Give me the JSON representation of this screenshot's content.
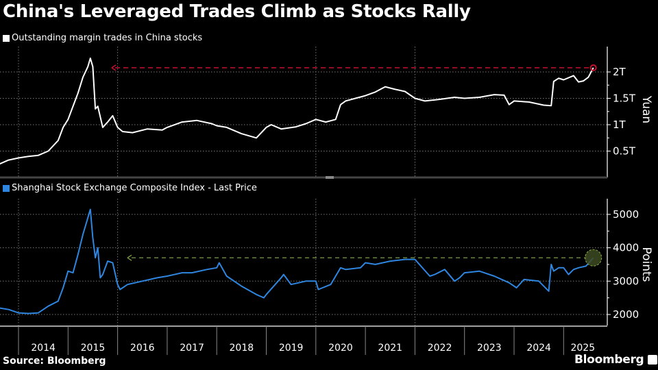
{
  "title": "China's Leveraged Trades Climb as Stocks Rally",
  "source": "Source: Bloomberg",
  "brand": "Bloomberg",
  "colors": {
    "margin": "#ffffff",
    "index": "#2f86e0",
    "margin_annotation": "#c8102e",
    "index_annotation": "#8ab04a",
    "grid": "#777777"
  },
  "chart_data": [
    {
      "type": "line",
      "title": "Outstanding margin trades in China stocks",
      "legend": "Outstanding margin trades in China stocks",
      "ylabel": "Yuan",
      "yticks": [
        0.5,
        1,
        1.5,
        2
      ],
      "ytick_labels": [
        "0.5T",
        "1T",
        "1.5T",
        "2T"
      ],
      "ylim": [
        0,
        2.4
      ],
      "unit": "trillion yuan",
      "annotation": "Latest level ≈ 2.08T, near 2015 high reference line",
      "x": [
        2013.6,
        2013.8,
        2014.0,
        2014.2,
        2014.4,
        2014.6,
        2014.8,
        2014.9,
        2015.0,
        2015.1,
        2015.2,
        2015.3,
        2015.4,
        2015.45,
        2015.5,
        2015.55,
        2015.6,
        2015.7,
        2015.8,
        2015.9,
        2016.0,
        2016.1,
        2016.3,
        2016.6,
        2016.9,
        2017.0,
        2017.3,
        2017.6,
        2017.9,
        2018.0,
        2018.2,
        2018.5,
        2018.8,
        2019.0,
        2019.1,
        2019.3,
        2019.6,
        2019.8,
        2020.0,
        2020.2,
        2020.4,
        2020.5,
        2020.6,
        2020.8,
        2021.0,
        2021.2,
        2021.4,
        2021.6,
        2021.8,
        2022.0,
        2022.2,
        2022.5,
        2022.8,
        2023.0,
        2023.3,
        2023.6,
        2023.8,
        2023.9,
        2024.0,
        2024.3,
        2024.6,
        2024.75,
        2024.8,
        2024.9,
        2025.0,
        2025.2,
        2025.3,
        2025.4,
        2025.5,
        2025.6
      ],
      "values": [
        0.25,
        0.33,
        0.37,
        0.4,
        0.42,
        0.5,
        0.7,
        0.95,
        1.1,
        1.35,
        1.6,
        1.9,
        2.1,
        2.26,
        2.1,
        1.3,
        1.35,
        0.95,
        1.05,
        1.17,
        0.95,
        0.87,
        0.85,
        0.92,
        0.9,
        0.95,
        1.05,
        1.08,
        1.02,
        0.98,
        0.95,
        0.83,
        0.75,
        0.95,
        1.0,
        0.92,
        0.96,
        1.02,
        1.1,
        1.05,
        1.1,
        1.38,
        1.45,
        1.5,
        1.55,
        1.62,
        1.72,
        1.67,
        1.63,
        1.5,
        1.45,
        1.48,
        1.52,
        1.5,
        1.52,
        1.57,
        1.56,
        1.38,
        1.45,
        1.43,
        1.37,
        1.36,
        1.82,
        1.88,
        1.85,
        1.93,
        1.81,
        1.83,
        1.9,
        2.08
      ]
    },
    {
      "type": "line",
      "title": "Shanghai Stock Exchange Composite Index - Last Price",
      "legend": "Shanghai Stock Exchange Composite Index - Last Price",
      "ylabel": "Points",
      "yticks": [
        2000,
        3000,
        4000,
        5000
      ],
      "ytick_labels": [
        "2000",
        "3000",
        "4000",
        "5000"
      ],
      "ylim": [
        1650,
        5450
      ],
      "annotation": "Latest level ≈ 3700 vs reference line",
      "xlabel_ticks": [
        "2014",
        "2015",
        "2016",
        "2017",
        "2018",
        "2019",
        "2020",
        "2021",
        "2022",
        "2023",
        "2024",
        "2025"
      ],
      "x": [
        2013.6,
        2013.8,
        2014.0,
        2014.2,
        2014.4,
        2014.6,
        2014.8,
        2014.9,
        2015.0,
        2015.1,
        2015.2,
        2015.3,
        2015.4,
        2015.45,
        2015.5,
        2015.55,
        2015.6,
        2015.65,
        2015.7,
        2015.8,
        2015.9,
        2016.0,
        2016.05,
        2016.2,
        2016.5,
        2016.8,
        2017.0,
        2017.3,
        2017.5,
        2017.8,
        2018.0,
        2018.05,
        2018.2,
        2018.5,
        2018.8,
        2018.95,
        2019.0,
        2019.3,
        2019.35,
        2019.5,
        2019.8,
        2020.0,
        2020.05,
        2020.3,
        2020.5,
        2020.6,
        2020.9,
        2021.0,
        2021.2,
        2021.5,
        2021.8,
        2022.0,
        2022.3,
        2022.4,
        2022.6,
        2022.8,
        2022.9,
        2023.0,
        2023.3,
        2023.6,
        2023.9,
        2024.05,
        2024.2,
        2024.5,
        2024.7,
        2024.75,
        2024.8,
        2024.9,
        2025.0,
        2025.1,
        2025.2,
        2025.3,
        2025.45,
        2025.6
      ],
      "values": [
        2200,
        2150,
        2050,
        2030,
        2050,
        2250,
        2400,
        2800,
        3300,
        3250,
        3800,
        4400,
        4900,
        5150,
        4300,
        3700,
        4000,
        3100,
        3200,
        3600,
        3550,
        2900,
        2750,
        2900,
        3000,
        3100,
        3150,
        3250,
        3250,
        3350,
        3400,
        3550,
        3150,
        2850,
        2600,
        2500,
        2600,
        3100,
        3200,
        2900,
        3000,
        3000,
        2750,
        2900,
        3400,
        3350,
        3400,
        3550,
        3500,
        3600,
        3650,
        3650,
        3150,
        3200,
        3350,
        3000,
        3100,
        3250,
        3300,
        3150,
        2950,
        2800,
        3050,
        3000,
        2700,
        3500,
        3300,
        3400,
        3400,
        3200,
        3350,
        3400,
        3450,
        3700
      ]
    }
  ]
}
